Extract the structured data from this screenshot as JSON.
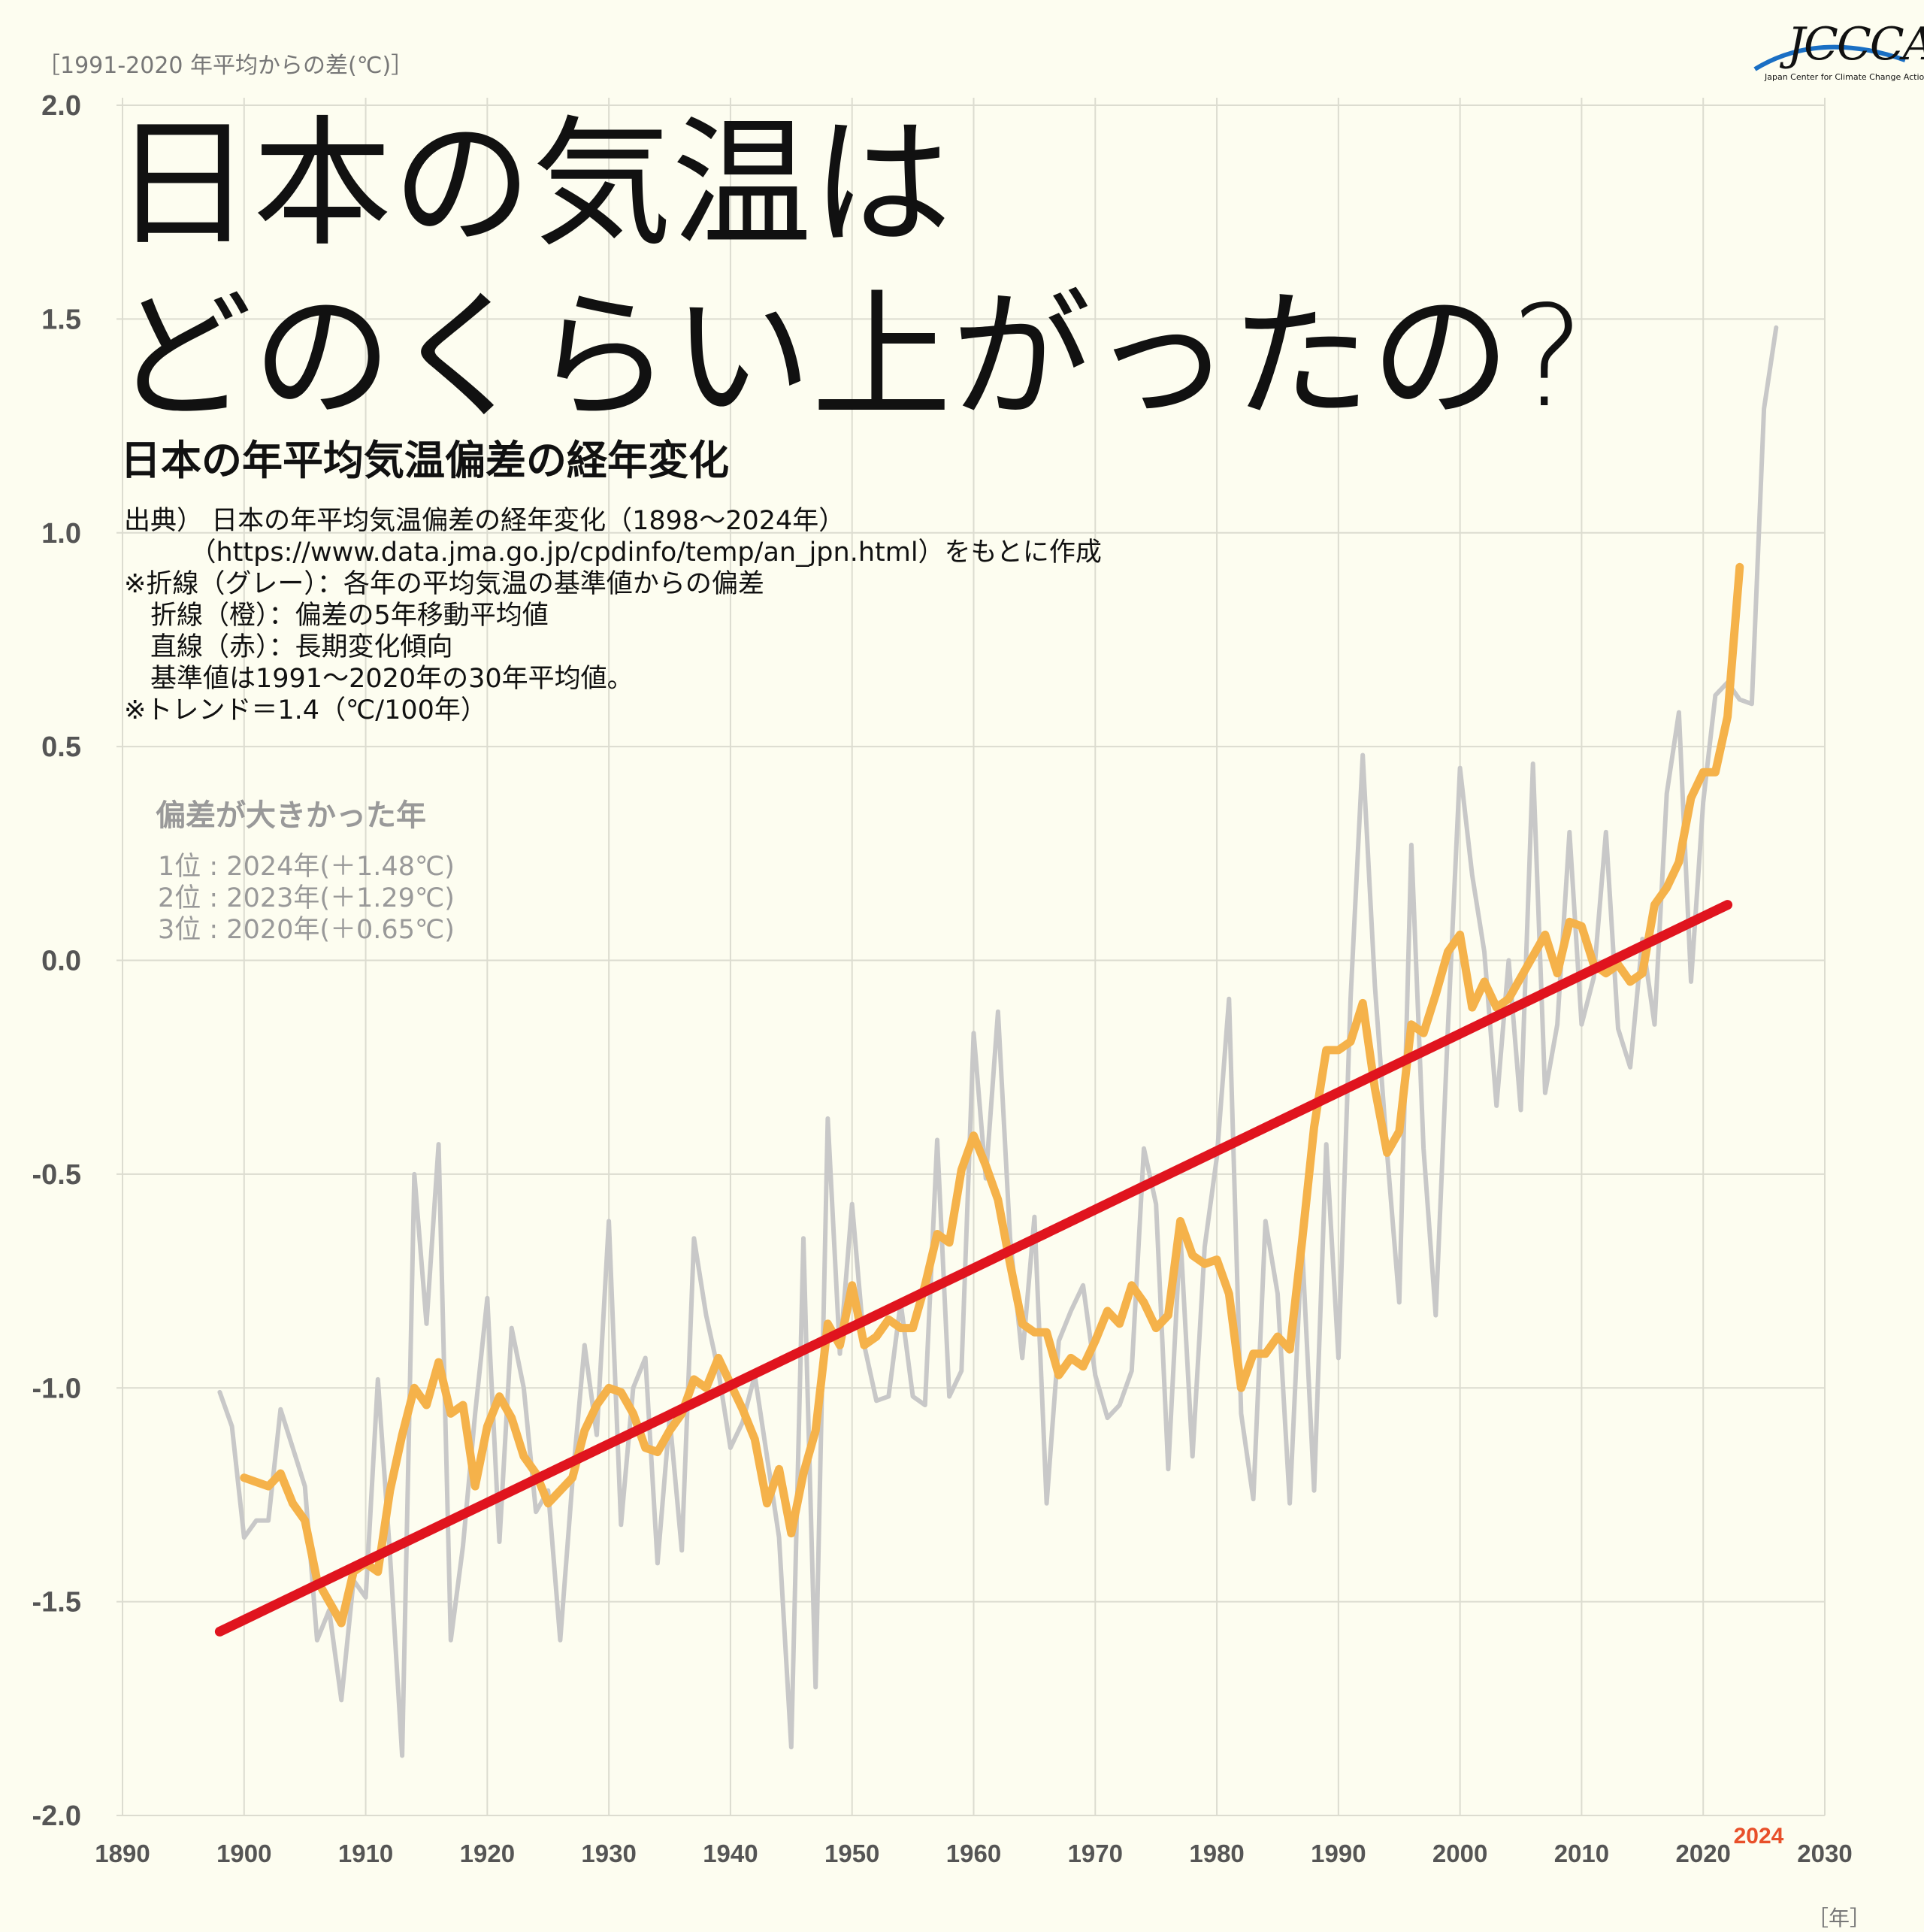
{
  "y_unit_label": "［1991-2020 年平均からの差(℃)］",
  "x_unit_label": "［年］",
  "logo": {
    "brand": "JCCCA",
    "sub": "Japan Center for Climate Change Actions"
  },
  "title_line1": "日本の気温は",
  "title_line2": "どのくらい上がったの?",
  "subtitle": "日本の年平均気温偏差の経年変化",
  "notes": [
    "出典） 日本の年平均気温偏差の経年変化（1898〜2024年）",
    "　　　（https://www.data.jma.go.jp/cpdinfo/temp/an_jpn.html）をもとに作成",
    "※折線（グレー）：各年の平均気温の基準値からの偏差",
    "　折線（橙）：偏差の5年移動平均値",
    "　直線（赤）：長期変化傾向",
    "　基準値は1991〜2020年の30年平均値。",
    "※トレンド＝1.4（℃/100年）"
  ],
  "ranking": {
    "title": "偏差が大きかった年",
    "items": [
      "1位 : 2024年(＋1.48℃)",
      "2位 : 2023年(＋1.29℃)",
      "3位 : 2020年(＋0.65℃)"
    ]
  },
  "chart_data": {
    "type": "line",
    "xlim": [
      1890,
      2030
    ],
    "ylim": [
      -2.0,
      2.0
    ],
    "x_ticks": [
      1890,
      1900,
      1910,
      1920,
      1930,
      1940,
      1950,
      1960,
      1970,
      1980,
      1990,
      2000,
      2010,
      2020,
      2030
    ],
    "y_ticks": [
      2.0,
      1.5,
      1.0,
      0.5,
      0.0,
      -0.5,
      -1.0,
      -1.5,
      -2.0
    ],
    "y_tick_labels": [
      "2.0",
      "1.5",
      "1.0",
      "0.5",
      "0.0",
      "-0.5",
      "-1.0",
      "-1.5",
      "-2.0"
    ],
    "highlight_label": "2024",
    "grid": true,
    "colors": {
      "annual": "#c8c8c8",
      "moving_avg": "#f5b24a",
      "trend": "#e0141e",
      "highlight": "#e8502a",
      "grid": "#dcdcd0",
      "tick": "#555555"
    },
    "series": [
      {
        "key": "annual",
        "x_start": 1898,
        "values": [
          -1.01,
          -1.09,
          -1.35,
          -1.31,
          -1.31,
          -1.05,
          -1.14,
          -1.23,
          -1.59,
          -1.52,
          -1.73,
          -1.45,
          -1.49,
          -0.98,
          -1.39,
          -1.86,
          -0.5,
          -0.85,
          -0.43,
          -1.59,
          -1.37,
          -1.06,
          -0.79,
          -1.36,
          -0.86,
          -1.0,
          -1.29,
          -1.24,
          -1.59,
          -1.22,
          -0.9,
          -1.11,
          -0.61,
          -1.32,
          -1.0,
          -0.93,
          -1.41,
          -1.07,
          -1.38,
          -0.65,
          -0.83,
          -0.96,
          -1.14,
          -1.08,
          -0.97,
          -1.16,
          -1.35,
          -1.84,
          -0.65,
          -1.7,
          -0.37,
          -0.92,
          -0.57,
          -0.9,
          -1.03,
          -1.02,
          -0.8,
          -1.02,
          -1.04,
          -0.42,
          -1.02,
          -0.96,
          -0.17,
          -0.51,
          -0.12,
          -0.65,
          -0.93,
          -0.6,
          -1.27,
          -0.89,
          -0.82,
          -0.76,
          -0.97,
          -1.07,
          -1.04,
          -0.96,
          -0.44,
          -0.57,
          -1.19,
          -0.64,
          -1.16,
          -0.67,
          -0.46,
          -0.09,
          -1.06,
          -1.26,
          -0.61,
          -0.78,
          -1.27,
          -0.66,
          -1.24,
          -0.43,
          -0.93,
          -0.09,
          0.48,
          -0.06,
          -0.45,
          -0.8,
          0.27,
          -0.44,
          -0.83,
          -0.16,
          0.45,
          0.2,
          0.02,
          -0.34,
          0.0,
          -0.35,
          0.46,
          -0.31,
          -0.15,
          0.3,
          -0.15,
          -0.04,
          0.3,
          -0.16,
          -0.25,
          0.05,
          -0.15,
          0.39,
          0.58,
          -0.05,
          0.37,
          0.62,
          0.65,
          0.61,
          0.6,
          1.29,
          1.48
        ]
      },
      {
        "key": "moving_avg",
        "x_start": 1900,
        "values": [
          -1.21,
          -1.22,
          -1.23,
          -1.2,
          -1.27,
          -1.31,
          -1.45,
          -1.5,
          -1.55,
          -1.43,
          -1.41,
          -1.43,
          -1.24,
          -1.11,
          -1.0,
          -1.04,
          -0.94,
          -1.06,
          -1.04,
          -1.23,
          -1.09,
          -1.02,
          -1.07,
          -1.16,
          -1.2,
          -1.27,
          -1.24,
          -1.21,
          -1.1,
          -1.04,
          -1.0,
          -1.01,
          -1.06,
          -1.14,
          -1.15,
          -1.1,
          -1.06,
          -0.98,
          -1.0,
          -0.93,
          -0.99,
          -1.05,
          -1.12,
          -1.27,
          -1.19,
          -1.34,
          -1.2,
          -1.1,
          -0.85,
          -0.9,
          -0.76,
          -0.9,
          -0.88,
          -0.84,
          -0.86,
          -0.86,
          -0.76,
          -0.64,
          -0.66,
          -0.49,
          -0.41,
          -0.48,
          -0.56,
          -0.71,
          -0.85,
          -0.87,
          -0.87,
          -0.97,
          -0.93,
          -0.95,
          -0.89,
          -0.82,
          -0.85,
          -0.76,
          -0.8,
          -0.86,
          -0.83,
          -0.61,
          -0.69,
          -0.71,
          -0.7,
          -0.78,
          -1.0,
          -0.92,
          -0.92,
          -0.88,
          -0.91,
          -0.66,
          -0.39,
          -0.21,
          -0.21,
          -0.19,
          -0.1,
          -0.3,
          -0.45,
          -0.4,
          -0.15,
          -0.17,
          -0.08,
          0.02,
          0.06,
          -0.11,
          -0.05,
          -0.11,
          -0.09,
          -0.04,
          0.01,
          0.06,
          -0.03,
          0.09,
          0.08,
          -0.01,
          -0.03,
          -0.01,
          -0.05,
          -0.03,
          0.13,
          0.17,
          0.23,
          0.38,
          0.44,
          0.44,
          0.57,
          0.92
        ]
      },
      {
        "key": "trend",
        "x": [
          1898,
          2022
        ],
        "values": [
          -1.57,
          0.13
        ]
      }
    ]
  }
}
